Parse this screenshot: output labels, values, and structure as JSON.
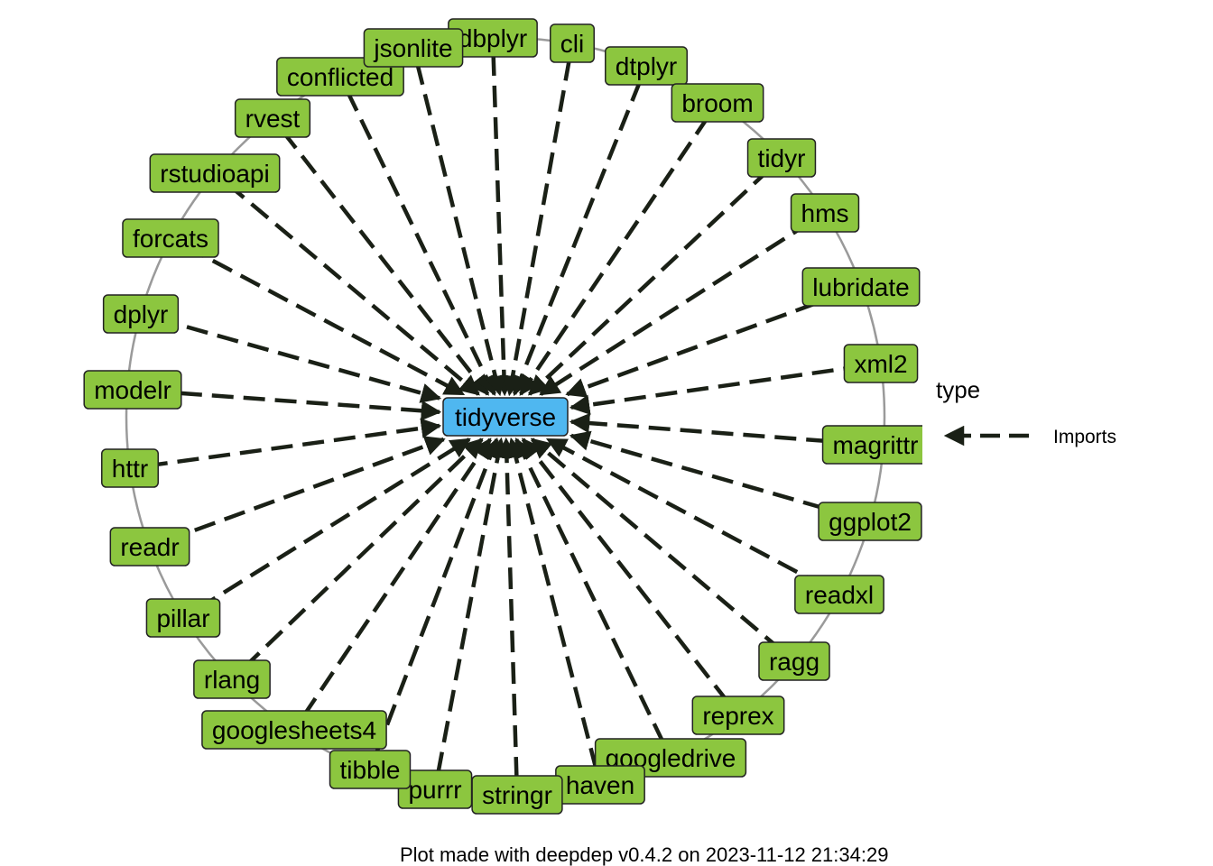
{
  "center": {
    "label": "tidyverse",
    "color": "#4fb7f0"
  },
  "dependencies": [
    "dbplyr",
    "cli",
    "dtplyr",
    "broom",
    "tidyr",
    "hms",
    "lubridate",
    "xml2",
    "magrittr",
    "ggplot2",
    "readxl",
    "ragg",
    "reprex",
    "googledrive",
    "haven",
    "stringr",
    "purrr",
    "tibble",
    "googlesheets4",
    "rlang",
    "pillar",
    "readr",
    "httr",
    "modelr",
    "dplyr",
    "forcats",
    "rstudioapi",
    "rvest",
    "conflicted",
    "jsonlite"
  ],
  "dependency_color": "#8cc63f",
  "edge_type": "Imports",
  "edge_color": "#1a2016",
  "legend": {
    "title": "type",
    "entries": [
      {
        "label": "Imports"
      }
    ]
  },
  "caption": "Plot made with deepdep v0.4.2 on 2023-11-12 21:34:29"
}
